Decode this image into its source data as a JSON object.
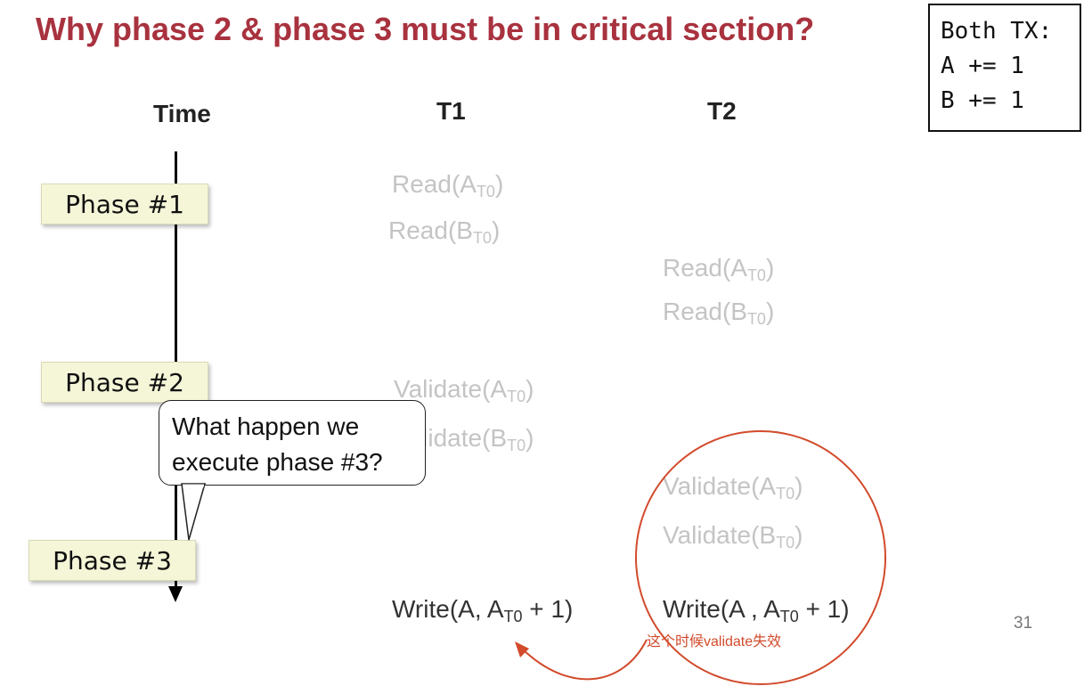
{
  "title": "Why phase 2 & phase 3 must be in critical section?",
  "code_box": {
    "lines": [
      "Both TX:",
      "A += 1",
      "B += 1"
    ]
  },
  "columns": {
    "time": "Time",
    "t1": "T1",
    "t2": "T2"
  },
  "phases": [
    "Phase #1",
    "Phase #2",
    "Phase #3"
  ],
  "t1_ops": [
    {
      "fn": "Read(A",
      "sub": "T0",
      "tail": ")"
    },
    {
      "fn": "Read(B",
      "sub": "T0",
      "tail": ")"
    },
    {
      "fn": "Validate(A",
      "sub": "T0",
      "tail": ")"
    },
    {
      "fn": "Validate(B",
      "sub": "T0",
      "tail": ")"
    },
    {
      "fn": "Write(A, A",
      "sub": "T0",
      "tail": " + 1)"
    }
  ],
  "t2_ops": [
    {
      "fn": "Read(A",
      "sub": "T0",
      "tail": ")"
    },
    {
      "fn": "Read(B",
      "sub": "T0",
      "tail": ")"
    },
    {
      "fn": "Validate(A",
      "sub": "T0",
      "tail": ")"
    },
    {
      "fn": "Validate(B",
      "sub": "T0",
      "tail": ")"
    },
    {
      "fn": "Write(A , A",
      "sub": "T0",
      "tail": " + 1)"
    }
  ],
  "callout": {
    "line1": "What happen we",
    "line2": "execute phase #3?"
  },
  "annotation": "这个时候validate失效",
  "page_number": "31",
  "colors": {
    "title": "#a8323e",
    "faded_text": "#c4c4c4",
    "active_text": "#333333",
    "annotation": "#d24b2c",
    "phase_fill": "#f5f6d8"
  }
}
